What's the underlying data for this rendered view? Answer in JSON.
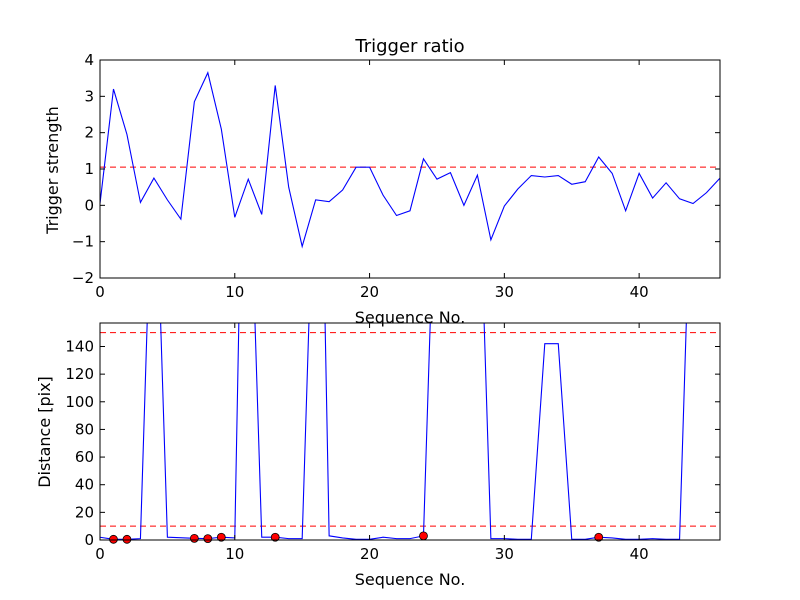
{
  "chart_data": [
    {
      "type": "line",
      "title": "Trigger ratio",
      "xlabel": "Sequence No.",
      "ylabel": "Trigger strength",
      "xlim": [
        0,
        46
      ],
      "ylim": [
        -2,
        4
      ],
      "xticks": [
        "0",
        "10",
        "20",
        "30",
        "40"
      ],
      "yticks": [
        "−2",
        "−1",
        "0",
        "1",
        "2",
        "3",
        "4"
      ],
      "threshold": 1.05,
      "line_color": "#0000ff",
      "threshold_color": "#ff0000",
      "x": [
        0,
        1,
        2,
        3,
        4,
        5,
        6,
        7,
        8,
        9,
        10,
        11,
        12,
        13,
        14,
        15,
        16,
        17,
        18,
        19,
        20,
        21,
        22,
        23,
        24,
        25,
        26,
        27,
        28,
        29,
        30,
        31,
        32,
        33,
        34,
        35,
        36,
        37,
        38,
        39,
        40,
        41,
        42,
        43,
        44,
        45,
        46
      ],
      "series": [
        {
          "values": [
            0.05,
            3.2,
            1.95,
            0.08,
            0.75,
            0.15,
            -0.38,
            2.85,
            3.65,
            2.1,
            -0.33,
            0.72,
            -0.25,
            3.3,
            0.5,
            -1.13,
            0.15,
            0.1,
            0.42,
            1.05,
            1.05,
            0.28,
            -0.28,
            -0.15,
            1.28,
            0.72,
            0.9,
            0.0,
            0.83,
            -0.95,
            -0.02,
            0.45,
            0.82,
            0.78,
            0.82,
            0.58,
            0.65,
            1.33,
            0.88,
            -0.15,
            0.88,
            0.2,
            0.62,
            0.18,
            0.05,
            0.35,
            0.75
          ]
        }
      ]
    },
    {
      "type": "line",
      "title": "",
      "xlabel": "Sequence No.",
      "ylabel": "Distance [pix]",
      "xlim": [
        0,
        46
      ],
      "ylim": [
        0,
        157
      ],
      "xticks": [
        "0",
        "10",
        "20",
        "30",
        "40"
      ],
      "yticks": [
        "0",
        "20",
        "40",
        "60",
        "80",
        "100",
        "120",
        "140"
      ],
      "thresholds": [
        150,
        10
      ],
      "line_color": "#0000ff",
      "threshold_color": "#ff0000",
      "marker_color": "#ff0000",
      "x": [
        0,
        1,
        2,
        3,
        3.5,
        4.5,
        5,
        7,
        8,
        9,
        10,
        10.3,
        11.5,
        12,
        13,
        14,
        15,
        15.5,
        16.7,
        17,
        18,
        19,
        20,
        21,
        22,
        23,
        24,
        24.5,
        28.5,
        29,
        30,
        31,
        32,
        33,
        34,
        35,
        36,
        37,
        38,
        39,
        40,
        41,
        42,
        43,
        43.5
      ],
      "series": [
        {
          "values": [
            2,
            0.5,
            0.5,
            1,
            157,
            157,
            2,
            1.2,
            1,
            2,
            1.5,
            157,
            157,
            2,
            2,
            1,
            1,
            157,
            157,
            3,
            1.5,
            0.5,
            0.5,
            2,
            1,
            1,
            3,
            157,
            157,
            1,
            1,
            0.5,
            0.5,
            142,
            142,
            0.5,
            0.5,
            2,
            1.5,
            0.5,
            0.5,
            1,
            0.5,
            0.5,
            157
          ]
        }
      ],
      "markers": {
        "x": [
          1,
          2,
          7,
          8,
          9,
          13,
          24,
          37
        ],
        "y": [
          0.5,
          0.5,
          1.2,
          1,
          2,
          2,
          3,
          2
        ]
      }
    }
  ]
}
